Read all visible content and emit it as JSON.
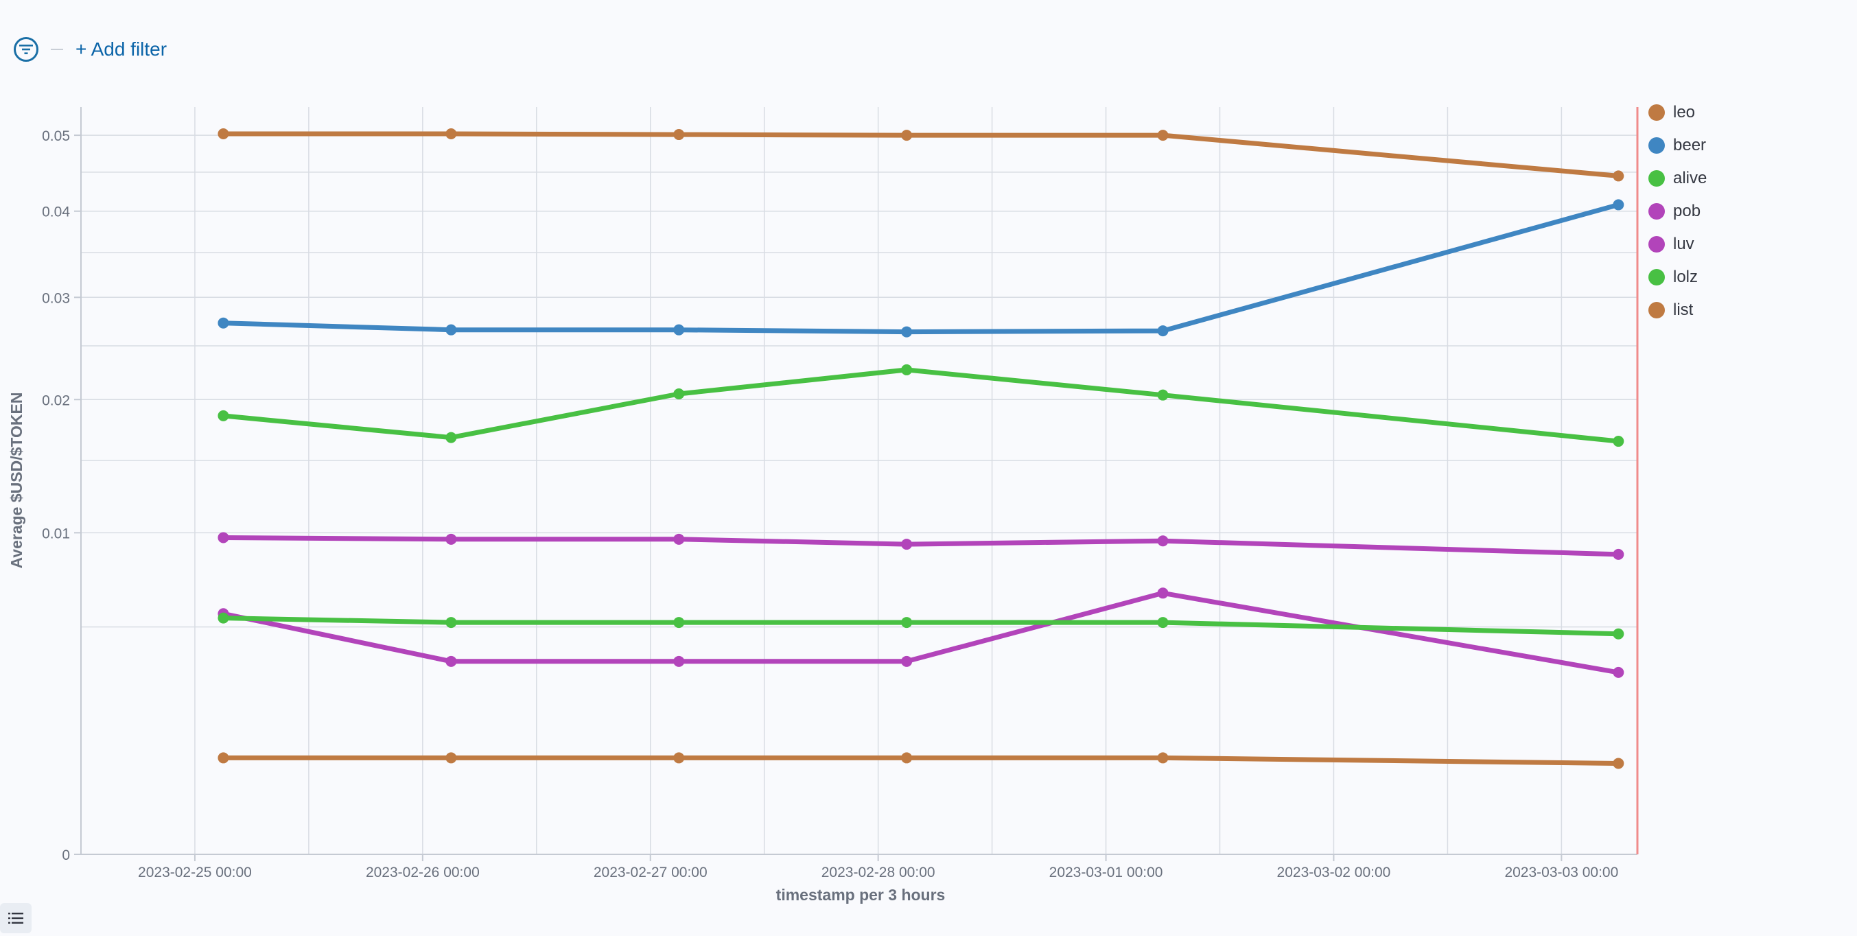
{
  "toolbar": {
    "filter_icon": "filter-icon",
    "add_filter_label": "+ Add filter"
  },
  "legend_toggle_icon": "list-icon",
  "chart_data": {
    "type": "line",
    "title": "",
    "xlabel": "timestamp per 3 hours",
    "ylabel": "Average $USD/$TOKEN",
    "y_scale": "sqrt",
    "ylim": [
      0,
      0.054
    ],
    "y_ticks": [
      0,
      0.01,
      0.02,
      0.03,
      0.04,
      0.05
    ],
    "y_tick_labels": [
      "0",
      "0.01",
      "0.02",
      "0.03",
      "0.04",
      "0.05"
    ],
    "xlim": [
      "2023-02-24 12:00",
      "2023-03-03 08:00"
    ],
    "x_ticks": [
      "2023-02-25 00:00",
      "2023-02-26 00:00",
      "2023-02-27 00:00",
      "2023-02-28 00:00",
      "2023-03-01 00:00",
      "2023-03-02 00:00",
      "2023-03-03 00:00"
    ],
    "x_tick_labels": [
      "2023-02-25 00:00",
      "2023-02-26 00:00",
      "2023-02-27 00:00",
      "2023-02-28 00:00",
      "2023-03-01 00:00",
      "2023-03-02 00:00",
      "2023-03-03 00:00"
    ],
    "grid": true,
    "legend_position": "right",
    "x": [
      "2023-02-25 03:00",
      "2023-02-26 03:00",
      "2023-02-27 03:00",
      "2023-02-28 03:00",
      "2023-03-01 06:00",
      "2023-03-03 06:00"
    ],
    "series": [
      {
        "name": "leo",
        "color": "#bf7a42",
        "values": [
          0.0502,
          0.0502,
          0.0501,
          0.05,
          0.05,
          0.0445
        ]
      },
      {
        "name": "beer",
        "color": "#3f86c2",
        "values": [
          0.0273,
          0.0266,
          0.0266,
          0.0264,
          0.0265,
          0.0408
        ]
      },
      {
        "name": "alive",
        "color": "#48c043",
        "values": [
          0.0186,
          0.0168,
          0.0205,
          0.0227,
          0.0204,
          0.0165
        ]
      },
      {
        "name": "pob",
        "color": "#b244ba",
        "values": [
          0.0097,
          0.0096,
          0.0096,
          0.0093,
          0.0095,
          0.0087
        ]
      },
      {
        "name": "luv",
        "color": "#b244ba",
        "values": [
          0.0056,
          0.0036,
          0.0036,
          0.0036,
          0.0066,
          0.0032
        ]
      },
      {
        "name": "lolz",
        "color": "#48c043",
        "values": [
          0.0054,
          0.0052,
          0.0052,
          0.0052,
          0.0052,
          0.0047
        ]
      },
      {
        "name": "list",
        "color": "#bf7a42",
        "values": [
          0.0009,
          0.0009,
          0.0009,
          0.0009,
          0.0009,
          0.0008
        ]
      }
    ]
  }
}
